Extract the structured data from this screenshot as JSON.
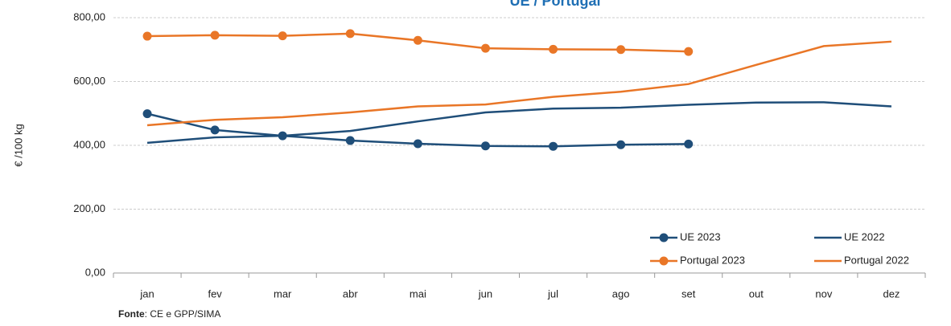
{
  "chart_data": {
    "type": "line",
    "title": "UE / Portugal",
    "y_label": "€ /100 kg",
    "source_label": "Fonte",
    "source_text": ": CE e GPP/SIMA",
    "categories": [
      "jan",
      "fev",
      "mar",
      "abr",
      "mai",
      "jun",
      "jul",
      "ago",
      "set",
      "out",
      "nov",
      "dez"
    ],
    "series": [
      {
        "name": "UE 2023",
        "color": "#1f4e79",
        "markers": true,
        "values": [
          499,
          448,
          430,
          415,
          405,
          398,
          397,
          402,
          404,
          null,
          null,
          null
        ]
      },
      {
        "name": "UE 2022",
        "color": "#1f4e79",
        "markers": false,
        "values": [
          408,
          425,
          430,
          445,
          475,
          503,
          515,
          518,
          527,
          534,
          535,
          522
        ]
      },
      {
        "name": "Portugal 2023",
        "color": "#e97627",
        "markers": true,
        "values": [
          742,
          745,
          743,
          750,
          729,
          704,
          701,
          700,
          694,
          null,
          null,
          null
        ]
      },
      {
        "name": "Portugal 2022",
        "color": "#e97627",
        "markers": false,
        "values": [
          463,
          480,
          488,
          503,
          522,
          528,
          552,
          568,
          592,
          652,
          711,
          725
        ]
      }
    ],
    "ylim": [
      0,
      800
    ],
    "yticks": [
      {
        "value": 0,
        "label": "0,00"
      },
      {
        "value": 200,
        "label": "200,00"
      },
      {
        "value": 400,
        "label": "400,00"
      },
      {
        "value": 600,
        "label": "600,00"
      },
      {
        "value": 800,
        "label": "800,00"
      }
    ],
    "grid": true,
    "legend": "lower right"
  }
}
